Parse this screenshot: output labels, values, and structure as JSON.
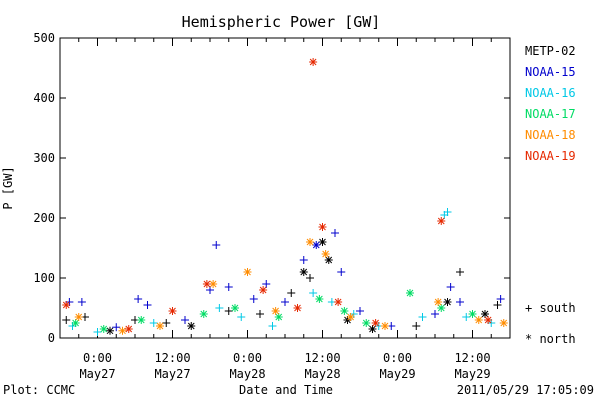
{
  "chart_data": {
    "type": "scatter",
    "title": "Hemispheric Power [GW]",
    "ylabel": "P [GW]",
    "xlabel": "Date and Time",
    "ylim": [
      0,
      500
    ],
    "xlim": [
      "2011-05-26T18:00",
      "2011-05-29T18:00"
    ],
    "yticks": [
      0,
      100,
      200,
      300,
      400,
      500
    ],
    "xticks": [
      {
        "time": "2011-05-27T00:00",
        "label1": "0:00",
        "label2": "May27"
      },
      {
        "time": "2011-05-27T12:00",
        "label1": "12:00",
        "label2": "May27"
      },
      {
        "time": "2011-05-28T00:00",
        "label1": "0:00",
        "label2": "May28"
      },
      {
        "time": "2011-05-28T12:00",
        "label1": "12:00",
        "label2": "May28"
      },
      {
        "time": "2011-05-29T00:00",
        "label1": "0:00",
        "label2": "May29"
      },
      {
        "time": "2011-05-29T12:00",
        "label1": "12:00",
        "label2": "May29"
      }
    ],
    "grid": false,
    "legend_position": "right",
    "marker_legend": {
      "plus": "+ south",
      "star": "* north"
    },
    "series": [
      {
        "name": "METP-02",
        "color": "#000000",
        "points": [
          [
            "2011-05-26T19:00",
            30,
            "south"
          ],
          [
            "2011-05-26T22:00",
            35,
            "south"
          ],
          [
            "2011-05-27T02:00",
            12,
            "north"
          ],
          [
            "2011-05-27T06:00",
            30,
            "south"
          ],
          [
            "2011-05-27T11:00",
            25,
            "south"
          ],
          [
            "2011-05-27T15:00",
            20,
            "north"
          ],
          [
            "2011-05-27T21:00",
            45,
            "south"
          ],
          [
            "2011-05-28T02:00",
            40,
            "south"
          ],
          [
            "2011-05-28T07:00",
            75,
            "south"
          ],
          [
            "2011-05-28T09:00",
            110,
            "north"
          ],
          [
            "2011-05-28T10:00",
            100,
            "south"
          ],
          [
            "2011-05-28T12:00",
            160,
            "north"
          ],
          [
            "2011-05-28T13:00",
            130,
            "north"
          ],
          [
            "2011-05-28T16:00",
            30,
            "north"
          ],
          [
            "2011-05-28T20:00",
            15,
            "north"
          ],
          [
            "2011-05-29T03:00",
            20,
            "south"
          ],
          [
            "2011-05-29T08:00",
            60,
            "north"
          ],
          [
            "2011-05-29T10:00",
            110,
            "south"
          ],
          [
            "2011-05-29T14:00",
            40,
            "north"
          ],
          [
            "2011-05-29T16:00",
            55,
            "south"
          ]
        ]
      },
      {
        "name": "NOAA-15",
        "color": "#0000cd",
        "points": [
          [
            "2011-05-26T19:30",
            60,
            "south"
          ],
          [
            "2011-05-26T21:30",
            60,
            "south"
          ],
          [
            "2011-05-27T03:00",
            18,
            "south"
          ],
          [
            "2011-05-27T06:30",
            65,
            "south"
          ],
          [
            "2011-05-27T08:00",
            55,
            "south"
          ],
          [
            "2011-05-27T14:00",
            30,
            "south"
          ],
          [
            "2011-05-27T18:00",
            80,
            "south"
          ],
          [
            "2011-05-27T19:00",
            155,
            "south"
          ],
          [
            "2011-05-27T21:00",
            85,
            "south"
          ],
          [
            "2011-05-28T01:00",
            65,
            "south"
          ],
          [
            "2011-05-28T03:00",
            90,
            "south"
          ],
          [
            "2011-05-28T06:00",
            60,
            "south"
          ],
          [
            "2011-05-28T09:00",
            130,
            "south"
          ],
          [
            "2011-05-28T11:00",
            155,
            "north"
          ],
          [
            "2011-05-28T14:00",
            175,
            "south"
          ],
          [
            "2011-05-28T15:00",
            110,
            "south"
          ],
          [
            "2011-05-28T18:00",
            45,
            "south"
          ],
          [
            "2011-05-28T23:00",
            20,
            "south"
          ],
          [
            "2011-05-29T06:00",
            40,
            "south"
          ],
          [
            "2011-05-29T08:30",
            85,
            "south"
          ],
          [
            "2011-05-29T10:00",
            60,
            "south"
          ],
          [
            "2011-05-29T16:30",
            65,
            "south"
          ]
        ]
      },
      {
        "name": "NOAA-16",
        "color": "#00c8e6",
        "points": [
          [
            "2011-05-26T20:00",
            20,
            "south"
          ],
          [
            "2011-05-27T00:00",
            10,
            "south"
          ],
          [
            "2011-05-27T09:00",
            25,
            "south"
          ],
          [
            "2011-05-27T19:30",
            50,
            "south"
          ],
          [
            "2011-05-27T23:00",
            35,
            "south"
          ],
          [
            "2011-05-28T04:00",
            20,
            "south"
          ],
          [
            "2011-05-28T10:30",
            75,
            "south"
          ],
          [
            "2011-05-28T13:30",
            60,
            "south"
          ],
          [
            "2011-05-28T17:00",
            40,
            "south"
          ],
          [
            "2011-05-28T21:00",
            20,
            "south"
          ],
          [
            "2011-05-29T04:00",
            35,
            "south"
          ],
          [
            "2011-05-29T07:30",
            205,
            "south"
          ],
          [
            "2011-05-29T08:00",
            210,
            "south"
          ],
          [
            "2011-05-29T11:00",
            35,
            "south"
          ],
          [
            "2011-05-29T15:00",
            25,
            "south"
          ]
        ]
      },
      {
        "name": "NOAA-17",
        "color": "#00dc64",
        "points": [
          [
            "2011-05-26T20:30",
            25,
            "north"
          ],
          [
            "2011-05-27T01:00",
            15,
            "north"
          ],
          [
            "2011-05-27T07:00",
            30,
            "north"
          ],
          [
            "2011-05-27T17:00",
            40,
            "north"
          ],
          [
            "2011-05-27T22:00",
            50,
            "north"
          ],
          [
            "2011-05-28T05:00",
            35,
            "north"
          ],
          [
            "2011-05-28T11:30",
            65,
            "north"
          ],
          [
            "2011-05-28T15:30",
            45,
            "north"
          ],
          [
            "2011-05-28T19:00",
            25,
            "north"
          ],
          [
            "2011-05-29T02:00",
            75,
            "north"
          ],
          [
            "2011-05-29T07:00",
            50,
            "north"
          ],
          [
            "2011-05-29T12:00",
            40,
            "north"
          ]
        ]
      },
      {
        "name": "NOAA-18",
        "color": "#ff8c00",
        "points": [
          [
            "2011-05-26T21:00",
            35,
            "north"
          ],
          [
            "2011-05-27T04:00",
            12,
            "north"
          ],
          [
            "2011-05-27T10:00",
            20,
            "north"
          ],
          [
            "2011-05-27T18:30",
            90,
            "north"
          ],
          [
            "2011-05-28T00:00",
            110,
            "north"
          ],
          [
            "2011-05-28T04:30",
            45,
            "north"
          ],
          [
            "2011-05-28T10:00",
            160,
            "north"
          ],
          [
            "2011-05-28T12:30",
            140,
            "north"
          ],
          [
            "2011-05-28T16:30",
            35,
            "north"
          ],
          [
            "2011-05-28T22:00",
            20,
            "north"
          ],
          [
            "2011-05-29T06:30",
            60,
            "north"
          ],
          [
            "2011-05-29T13:00",
            30,
            "north"
          ],
          [
            "2011-05-29T17:00",
            25,
            "north"
          ]
        ]
      },
      {
        "name": "NOAA-19",
        "color": "#e62800",
        "points": [
          [
            "2011-05-26T19:00",
            55,
            "north"
          ],
          [
            "2011-05-27T05:00",
            15,
            "north"
          ],
          [
            "2011-05-27T12:00",
            45,
            "north"
          ],
          [
            "2011-05-27T17:30",
            90,
            "north"
          ],
          [
            "2011-05-28T02:30",
            80,
            "north"
          ],
          [
            "2011-05-28T08:00",
            50,
            "north"
          ],
          [
            "2011-05-28T10:30",
            460,
            "north"
          ],
          [
            "2011-05-28T12:00",
            185,
            "north"
          ],
          [
            "2011-05-28T14:30",
            60,
            "north"
          ],
          [
            "2011-05-28T20:30",
            25,
            "north"
          ],
          [
            "2011-05-29T07:00",
            195,
            "north"
          ],
          [
            "2011-05-29T14:30",
            30,
            "north"
          ]
        ]
      }
    ]
  },
  "footer": {
    "left": "Plot: CCMC",
    "right": "2011/05/29 17:05:09"
  }
}
